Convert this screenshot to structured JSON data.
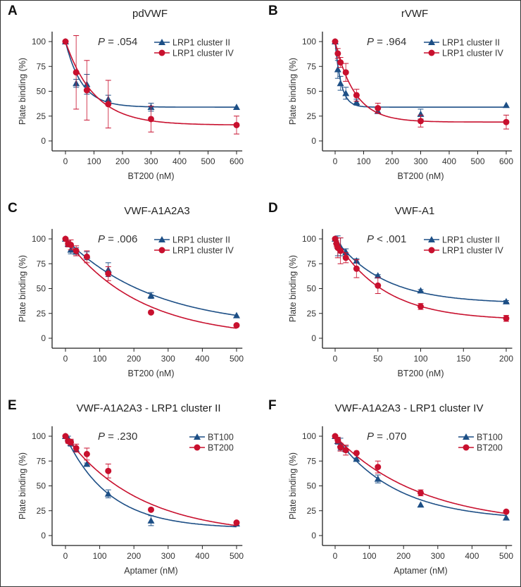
{
  "chart_data": [
    {
      "type": "scatter",
      "panel": "A",
      "title": "pdVWF",
      "pvalue": "P = .054",
      "xlabel": "BT200 (nM)",
      "ylabel": "Plate binding (%)",
      "xlim": [
        -40,
        620
      ],
      "ylim": [
        -10,
        110
      ],
      "xticks": [
        0,
        100,
        200,
        300,
        400,
        500,
        600
      ],
      "yticks": [
        0,
        25,
        50,
        75,
        100
      ],
      "series": [
        {
          "name": "LRP1 cluster II",
          "color": "#1d4f86",
          "marker": "triangle",
          "x": [
            0,
            37.5,
            75,
            150,
            300,
            600
          ],
          "y": [
            100,
            58,
            57,
            42,
            34,
            34
          ],
          "err": [
            0,
            4,
            10,
            4,
            4,
            0
          ],
          "fit": {
            "plateau": 34,
            "k": 0.0175
          }
        },
        {
          "name": "LRP1 cluster IV",
          "color": "#c8102e",
          "marker": "circle",
          "x": [
            0,
            37.5,
            75,
            150,
            300,
            600
          ],
          "y": [
            100,
            69,
            51,
            37,
            22,
            16
          ],
          "err": [
            0,
            37,
            30,
            24,
            13,
            9
          ],
          "fit": {
            "plateau": 16,
            "k": 0.0099
          }
        }
      ]
    },
    {
      "type": "scatter",
      "panel": "B",
      "title": "rVWF",
      "pvalue": "P = .964",
      "xlabel": "BT200 (nM)",
      "ylabel": "Plate binding (%)",
      "xlim": [
        -40,
        620
      ],
      "ylim": [
        -10,
        110
      ],
      "xticks": [
        0,
        100,
        200,
        300,
        400,
        500,
        600
      ],
      "yticks": [
        0,
        25,
        50,
        75,
        100
      ],
      "series": [
        {
          "name": "LRP1 cluster II",
          "color": "#1d4f86",
          "marker": "triangle",
          "x": [
            0,
            9.4,
            18.75,
            37.5,
            75,
            150,
            300,
            600
          ],
          "y": [
            100,
            72,
            58,
            48,
            39,
            30,
            27,
            36
          ],
          "err": [
            0,
            9,
            7,
            6,
            3,
            2,
            5,
            0
          ],
          "fit": {
            "plateau": 34,
            "k": 0.048
          }
        },
        {
          "name": "LRP1 cluster IV",
          "color": "#c8102e",
          "marker": "circle",
          "x": [
            0,
            9.4,
            18.75,
            37.5,
            75,
            150,
            300,
            600
          ],
          "y": [
            100,
            88,
            79,
            69,
            46,
            33,
            20,
            19
          ],
          "err": [
            0,
            5,
            5,
            9,
            6,
            5,
            6,
            7
          ],
          "fit": {
            "plateau": 19,
            "k": 0.0146
          }
        }
      ]
    },
    {
      "type": "scatter",
      "panel": "C",
      "title": "VWF-A1A2A3",
      "pvalue": "P = .006",
      "xlabel": "BT200 (nM)",
      "ylabel": "Plate binding (%)",
      "xlim": [
        -33,
        517
      ],
      "ylim": [
        -10,
        110
      ],
      "xticks": [
        0,
        100,
        200,
        300,
        400,
        500
      ],
      "yticks": [
        0,
        25,
        50,
        75,
        100
      ],
      "series": [
        {
          "name": "LRP1 cluster II",
          "color": "#1d4f86",
          "marker": "triangle",
          "x": [
            0,
            7.8,
            15.6,
            31.25,
            62.5,
            125,
            250,
            500
          ],
          "y": [
            100,
            95,
            89,
            87,
            83,
            69,
            43,
            23
          ],
          "err": [
            0,
            3,
            4,
            4,
            4,
            7,
            3,
            0
          ],
          "fit": {
            "plateau": 10,
            "k": 0.00387
          }
        },
        {
          "name": "LRP1 cluster IV",
          "color": "#c8102e",
          "marker": "circle",
          "x": [
            0,
            7.8,
            15.6,
            31.25,
            62.5,
            125,
            250,
            500
          ],
          "y": [
            100,
            95,
            94,
            88,
            82,
            65,
            26,
            13
          ],
          "err": [
            0,
            3,
            5,
            5,
            6,
            7,
            0,
            0
          ],
          "fit": {
            "plateau": 0,
            "k": 0.0046
          }
        }
      ]
    },
    {
      "type": "scatter",
      "panel": "D",
      "title": "VWF-A1",
      "pvalue": "P < .001",
      "xlabel": "BT200 (nM)",
      "ylabel": "Plate binding (%)",
      "xlim": [
        -13,
        207
      ],
      "ylim": [
        -10,
        110
      ],
      "xticks": [
        0,
        50,
        100,
        150,
        200
      ],
      "yticks": [
        0,
        25,
        50,
        75,
        100
      ],
      "series": [
        {
          "name": "LRP1 cluster II",
          "color": "#1d4f86",
          "marker": "triangle",
          "x": [
            0,
            1.56,
            3.125,
            6.25,
            12.5,
            25,
            50,
            100,
            200
          ],
          "y": [
            100,
            98,
            93,
            92,
            87,
            78,
            63,
            48,
            37
          ],
          "err": [
            0,
            3,
            10,
            9,
            3,
            2,
            1,
            1,
            1
          ],
          "fit": {
            "plateau": 35,
            "k": 0.0176
          }
        },
        {
          "name": "LRP1 cluster IV",
          "color": "#c8102e",
          "marker": "circle",
          "x": [
            0,
            1.56,
            3.125,
            6.25,
            12.5,
            25,
            50,
            100,
            200
          ],
          "y": [
            100,
            95,
            91,
            88,
            81,
            70,
            53,
            32,
            20
          ],
          "err": [
            0,
            3,
            10,
            13,
            5,
            9,
            8,
            3,
            3
          ],
          "fit": {
            "plateau": 18,
            "k": 0.0176
          }
        }
      ]
    },
    {
      "type": "scatter",
      "panel": "E",
      "title": "VWF-A1A2A3 - LRP1 cluster II",
      "pvalue": "P = .230",
      "xlabel": "Aptamer (nM)",
      "ylabel": "Plate binding (%)",
      "xlim": [
        -33,
        517
      ],
      "ylim": [
        -10,
        110
      ],
      "xticks": [
        0,
        100,
        200,
        300,
        400,
        500
      ],
      "yticks": [
        0,
        25,
        50,
        75,
        100
      ],
      "series": [
        {
          "name": "BT100",
          "color": "#1d4f86",
          "marker": "triangle",
          "x": [
            0,
            7.8,
            15.6,
            31.25,
            62.5,
            125,
            250,
            500
          ],
          "y": [
            100,
            98,
            93,
            87,
            72,
            42,
            15,
            12
          ],
          "err": [
            0,
            2,
            3,
            2,
            1,
            4,
            5,
            0
          ],
          "fit": {
            "plateau": 7,
            "k": 0.0078
          }
        },
        {
          "name": "BT200",
          "color": "#c8102e",
          "marker": "circle",
          "x": [
            0,
            7.8,
            15.6,
            31.25,
            62.5,
            125,
            250,
            500
          ],
          "y": [
            100,
            95,
            94,
            88,
            82,
            65,
            26,
            13
          ],
          "err": [
            0,
            2,
            3,
            4,
            6,
            7,
            0,
            0
          ],
          "fit": {
            "plateau": 0,
            "k": 0.0046
          }
        }
      ]
    },
    {
      "type": "scatter",
      "panel": "F",
      "title": "VWF-A1A2A3 - LRP1 cluster IV",
      "pvalue": "P = .070",
      "xlabel": "Aptamer (nM)",
      "ylabel": "Plate binding (%)",
      "xlim": [
        -33,
        517
      ],
      "ylim": [
        -10,
        110
      ],
      "xticks": [
        0,
        100,
        200,
        300,
        400,
        500
      ],
      "yticks": [
        0,
        25,
        50,
        75,
        100
      ],
      "series": [
        {
          "name": "BT100",
          "color": "#1d4f86",
          "marker": "triangle",
          "x": [
            0,
            7.8,
            15.6,
            31.25,
            62.5,
            125,
            250,
            500
          ],
          "y": [
            100,
            95,
            92,
            87,
            77,
            57,
            31,
            18
          ],
          "err": [
            0,
            3,
            6,
            3,
            1,
            4,
            0,
            0
          ],
          "fit": {
            "plateau": 15,
            "k": 0.0056
          }
        },
        {
          "name": "BT200",
          "color": "#c8102e",
          "marker": "circle",
          "x": [
            0,
            7.8,
            15.6,
            31.25,
            62.5,
            125,
            250,
            500
          ],
          "y": [
            100,
            96,
            89,
            86,
            83,
            69,
            43,
            24
          ],
          "err": [
            0,
            3,
            4,
            5,
            0,
            6,
            3,
            0
          ],
          "fit": {
            "plateau": 10,
            "k": 0.004
          }
        }
      ]
    }
  ]
}
